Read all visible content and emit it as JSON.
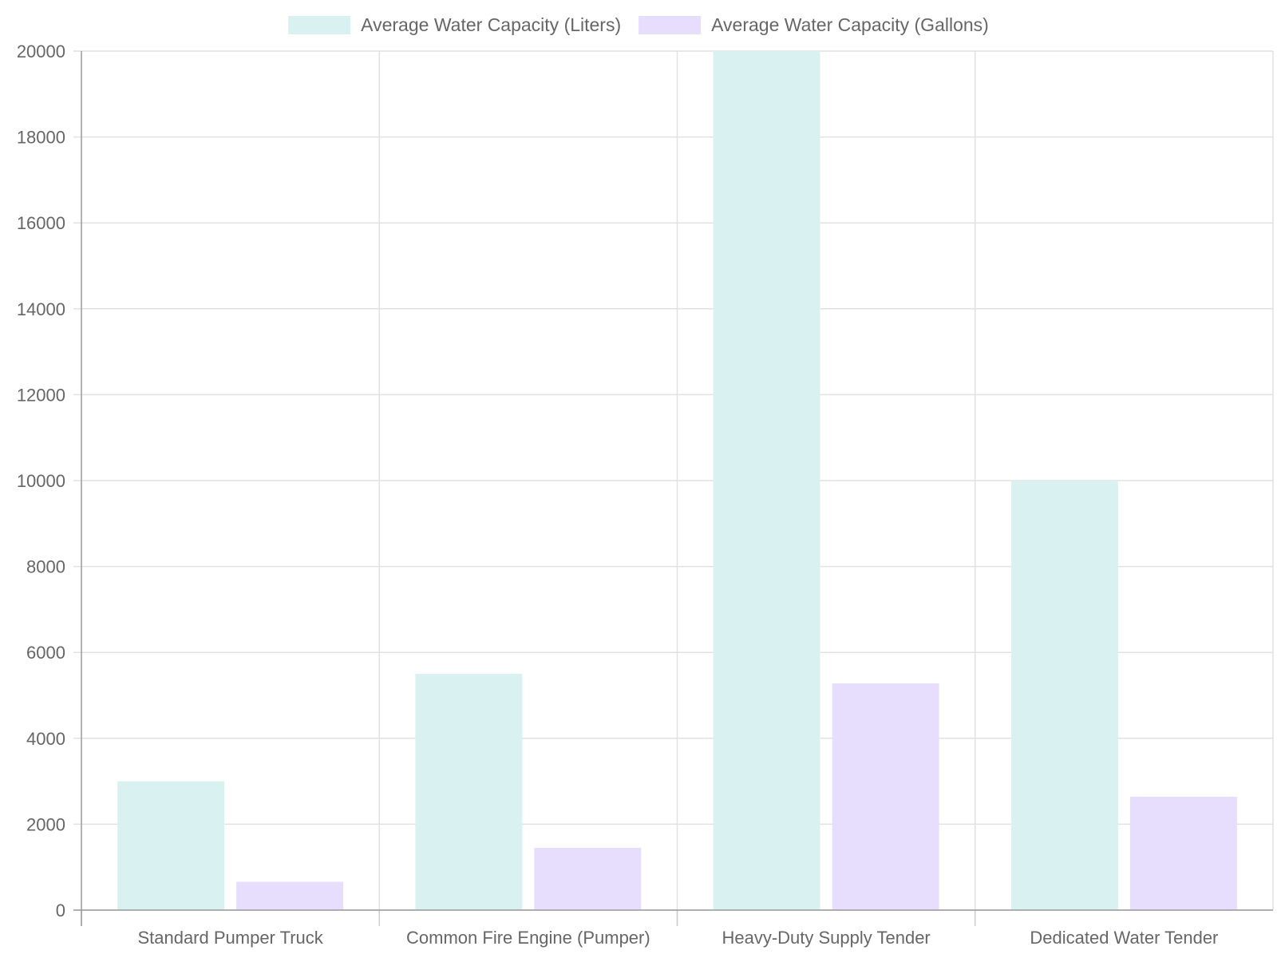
{
  "chart_data": {
    "type": "bar",
    "categories": [
      "Standard Pumper Truck",
      "Common Fire Engine (Pumper)",
      "Heavy-Duty Supply Tender",
      "Dedicated Water Tender"
    ],
    "series": [
      {
        "name": "Average Water Capacity (Liters)",
        "values": [
          3000,
          5500,
          20000,
          10000
        ],
        "color": "#d9f1f1"
      },
      {
        "name": "Average Water Capacity (Gallons)",
        "values": [
          660,
          1450,
          5280,
          2640
        ],
        "color": "#e6defc"
      }
    ],
    "title": "",
    "xlabel": "",
    "ylabel": "",
    "ylim": [
      0,
      20000
    ],
    "yticks": [
      0,
      2000,
      4000,
      6000,
      8000,
      10000,
      12000,
      14000,
      16000,
      18000,
      20000
    ],
    "grid": true,
    "legend_position": "top"
  }
}
